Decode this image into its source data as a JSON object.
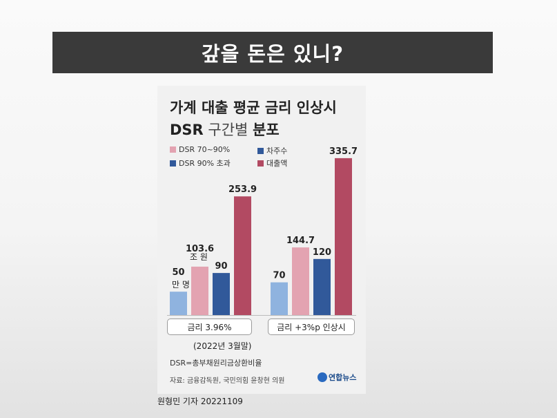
{
  "banner": {
    "title": "갚을 돈은 있니?"
  },
  "card": {
    "title_line1": "가계 대출 평균 금리 인상시",
    "title_line2_bold": "DSR",
    "title_line2_light": "구간별",
    "title_line2_end": "분포",
    "note": "DSR=총부채원리금상환비율",
    "source": "자료: 금융감독원, 국민의힘 윤창현 의원",
    "logo": "연합뉴스",
    "date_note": "(2022년 3월말)"
  },
  "byline": "원형민 기자  20221109",
  "unit_labels": {
    "borrowers": "만 명",
    "amount": "조 원"
  },
  "colors": {
    "borrowers_70_90": "#8fb3df",
    "amount_70_90": "#e3a3b1",
    "borrowers_90_over": "#31599a",
    "amount_90_over": "#b24a62"
  },
  "chart_data": {
    "type": "bar",
    "categories": [
      "금리 3.96%",
      "금리 +3%p 인상시"
    ],
    "legend": [
      "DSR 70~90%",
      "차주수",
      "DSR 90% 초과",
      "대출액"
    ],
    "series": [
      {
        "name": "DSR 70~90% 차주수",
        "values": [
          50,
          70
        ],
        "unit": "만 명"
      },
      {
        "name": "DSR 70~90% 대출액",
        "values": [
          103.6,
          144.7
        ],
        "unit": "조 원"
      },
      {
        "name": "DSR 90% 초과 차주수",
        "values": [
          90,
          120
        ],
        "unit": "만 명"
      },
      {
        "name": "DSR 90% 초과 대출액",
        "values": [
          253.9,
          335.7
        ],
        "unit": "조 원"
      }
    ],
    "value_labels": [
      [
        "50",
        "103.6",
        "90",
        "253.9"
      ],
      [
        "70",
        "144.7",
        "120",
        "335.7"
      ]
    ],
    "title": "가계 대출 평균 금리 인상시 DSR 구간별 분포",
    "ylim": [
      0,
      340
    ],
    "grid": false,
    "legend_placement": "top-left"
  }
}
